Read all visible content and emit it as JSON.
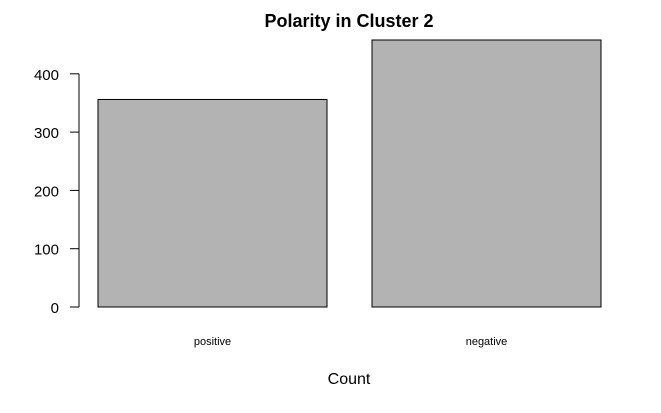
{
  "chart_data": {
    "type": "bar",
    "title": "Polarity in Cluster 2",
    "xlabel": "Count",
    "ylabel": "",
    "categories": [
      "positive",
      "negative"
    ],
    "values": [
      356,
      458
    ],
    "yticks": [
      0,
      100,
      200,
      300,
      400
    ],
    "ylim": [
      0,
      458
    ],
    "bar_color": "#b3b3b3",
    "bar_border_color": "#000000",
    "grid": false
  }
}
